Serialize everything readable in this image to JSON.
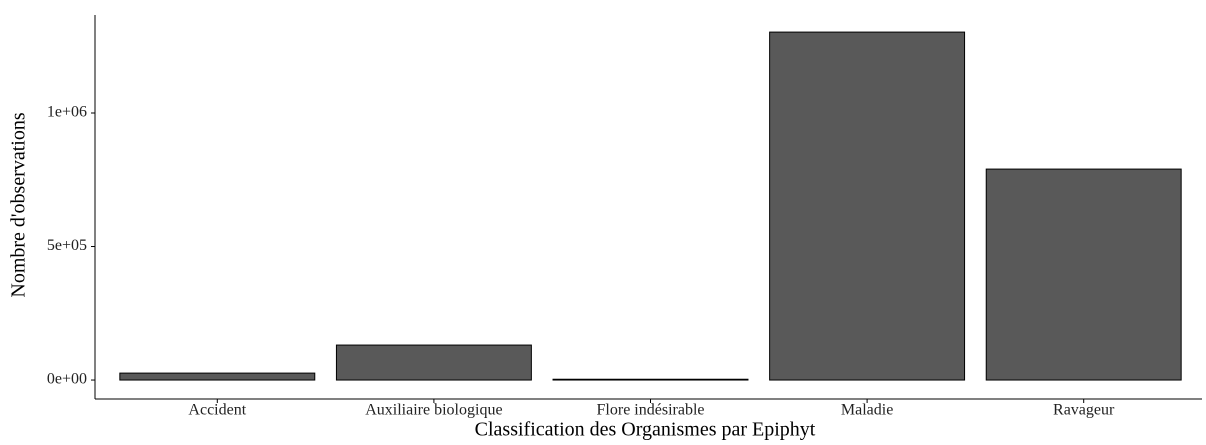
{
  "chart_data": {
    "type": "bar",
    "categories": [
      "Accident",
      "Auxiliaire biologique",
      "Flore indésirable",
      "Maladie",
      "Ravageur"
    ],
    "values": [
      26000,
      131000,
      3000,
      1303000,
      790000
    ],
    "color": "#595959",
    "x_label": "Classification des Organismes par Epiphyt",
    "y_label": "Nombre d'observations",
    "ylim": [
      -71000,
      1367000
    ],
    "yticks": [
      {
        "value": 0,
        "label": "0e+00"
      },
      {
        "value": 500000,
        "label": "5e+05"
      },
      {
        "value": 1000000,
        "label": "1e+06"
      }
    ],
    "grid": false
  }
}
